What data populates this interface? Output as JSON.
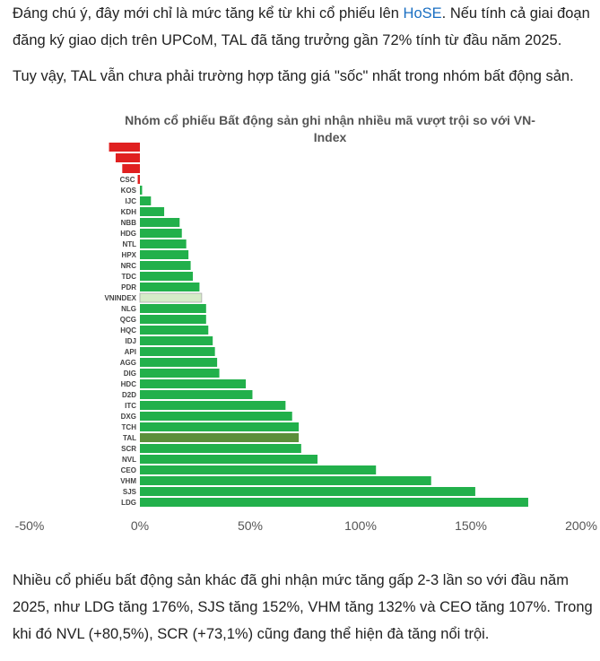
{
  "article": {
    "p1": {
      "before": "Đáng chú ý, đây mới chỉ là mức tăng kể từ khi cổ phiếu lên ",
      "link": "HoSE",
      "after": ". Nếu tính cả giai đoạn đăng ký giao dịch trên UPCoM, TAL đã tăng trưởng gần 72% tính từ đầu năm 2025."
    },
    "p2": "Tuy vậy, TAL vẫn chưa phải trường hợp tăng giá \"sốc\" nhất trong nhóm bất động sản.",
    "p3": "Nhiều cổ phiếu bất động sản khác đã ghi nhận mức tăng gấp 2-3 lần so với đầu năm 2025, như LDG tăng 176%, SJS tăng 152%, VHM tăng 132% và CEO tăng 107%. Trong khi đó NVL (+80,5%), SCR (+73,1%) cũng đang thể hiện đà tăng nổi trội."
  },
  "colors": {
    "positive": "#22b04b",
    "negative": "#e02020",
    "index": "#d6ebc8",
    "highlight": "#5b8f3a",
    "link": "#1a6fc2"
  },
  "chart_data": {
    "type": "bar",
    "orientation": "horizontal",
    "title": [
      "Nhóm cổ phiếu Bất động sản ghi nhận nhiều mã vượt trội so với VN-",
      "Index"
    ],
    "xlim": [
      -50,
      200
    ],
    "xticks": [
      "-50%",
      "0%",
      "50%",
      "100%",
      "150%",
      "200%"
    ],
    "grid": false,
    "categories": [
      "",
      "",
      "",
      "CSC",
      "KOS",
      "IJC",
      "KDH",
      "NBB",
      "HDG",
      "NTL",
      "HPX",
      "NRC",
      "TDC",
      "PDR",
      "VNINDEX",
      "NLG",
      "QCG",
      "HQC",
      "IDJ",
      "API",
      "AGG",
      "DIG",
      "HDC",
      "D2D",
      "ITC",
      "DXG",
      "TCH",
      "TAL",
      "SCR",
      "NVL",
      "CEO",
      "VHM",
      "SJS",
      "LDG"
    ],
    "values": [
      -14,
      -11,
      -8,
      -1,
      1,
      5,
      11,
      18,
      19,
      21,
      22,
      23,
      24,
      27,
      28,
      30,
      30,
      31,
      33,
      34,
      35,
      36,
      48,
      51,
      66,
      69,
      72,
      72,
      73.1,
      80.5,
      107,
      132,
      152,
      176
    ],
    "highlight": [
      "TAL"
    ],
    "index_category": "VNINDEX"
  }
}
